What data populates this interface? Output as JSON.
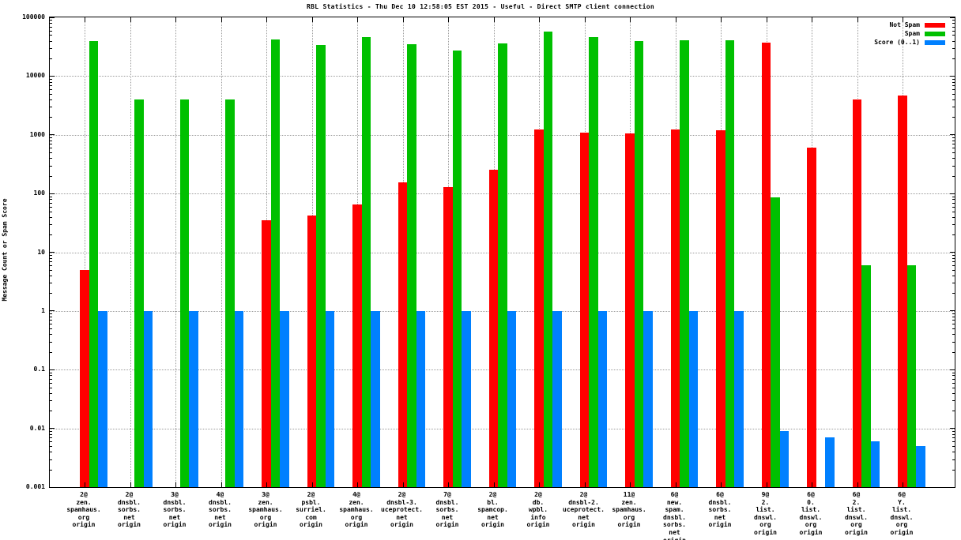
{
  "chart_data": {
    "type": "bar",
    "title": "RBL Statistics - Thu Dec 10 12:58:05 EST 2015 - Useful - Direct SMTP client connection",
    "ylabel": "Message Count or Spam Score",
    "y_scale": "log",
    "ylim": [
      0.001,
      100000
    ],
    "ytick_labels": [
      "100000",
      "10000",
      "1000",
      "100",
      "10",
      "1",
      "0.1",
      "0.01",
      "0.001"
    ],
    "grid": true,
    "legend_position": "top-right-inside",
    "categories": [
      [
        "2@",
        "zen.",
        "spamhaus.",
        "org",
        "origin"
      ],
      [
        "2@",
        "dnsbl.",
        "sorbs.",
        "net",
        "origin"
      ],
      [
        "3@",
        "dnsbl.",
        "sorbs.",
        "net",
        "origin"
      ],
      [
        "4@",
        "dnsbl.",
        "sorbs.",
        "net",
        "origin"
      ],
      [
        "3@",
        "zen.",
        "spamhaus.",
        "org",
        "origin"
      ],
      [
        "2@",
        "psbl.",
        "surriel.",
        "com",
        "origin"
      ],
      [
        "4@",
        "zen.",
        "spamhaus.",
        "org",
        "origin"
      ],
      [
        "2@",
        "dnsbl-3.",
        "uceprotect.",
        "net",
        "origin"
      ],
      [
        "7@",
        "dnsbl.",
        "sorbs.",
        "net",
        "origin"
      ],
      [
        "2@",
        "bl.",
        "spamcop.",
        "net",
        "origin"
      ],
      [
        "2@",
        "db.",
        "wpbl.",
        "info",
        "origin"
      ],
      [
        "2@",
        "dnsbl-2.",
        "uceprotect.",
        "net",
        "origin"
      ],
      [
        "11@",
        "zen.",
        "spamhaus.",
        "org",
        "origin"
      ],
      [
        "6@",
        "new.",
        "spam.",
        "dnsbl.",
        "sorbs.",
        "net",
        "origin"
      ],
      [
        "6@",
        "dnsbl.",
        "sorbs.",
        "net",
        "origin"
      ],
      [
        "9@",
        "2.",
        "list.",
        "dnswl.",
        "org",
        "origin"
      ],
      [
        "6@",
        "0.",
        "list.",
        "dnswl.",
        "org",
        "origin"
      ],
      [
        "6@",
        "2.",
        "list.",
        "dnswl.",
        "org",
        "origin"
      ],
      [
        "6@",
        "Y.",
        "list.",
        "dnswl.",
        "org",
        "origin"
      ]
    ],
    "series": [
      {
        "name": "Not Spam",
        "color": "#ff0000",
        "values": [
          5,
          0,
          0,
          0,
          35,
          42,
          65,
          155,
          130,
          255,
          1250,
          1100,
          1050,
          1250,
          1200,
          37000,
          600,
          4000,
          4600
        ]
      },
      {
        "name": "Spam",
        "color": "#00c000",
        "values": [
          40000,
          4000,
          4000,
          4000,
          42000,
          34000,
          46000,
          35000,
          27000,
          36000,
          58000,
          46000,
          40000,
          41000,
          41000,
          85,
          0,
          6,
          6
        ]
      },
      {
        "name": "Score (0..1)",
        "color": "#0080ff",
        "values": [
          1,
          1,
          1,
          1,
          1,
          1,
          1,
          1,
          1,
          1,
          1,
          1,
          1,
          1,
          1,
          0.009,
          0.007,
          0.006,
          0.005
        ]
      }
    ]
  }
}
